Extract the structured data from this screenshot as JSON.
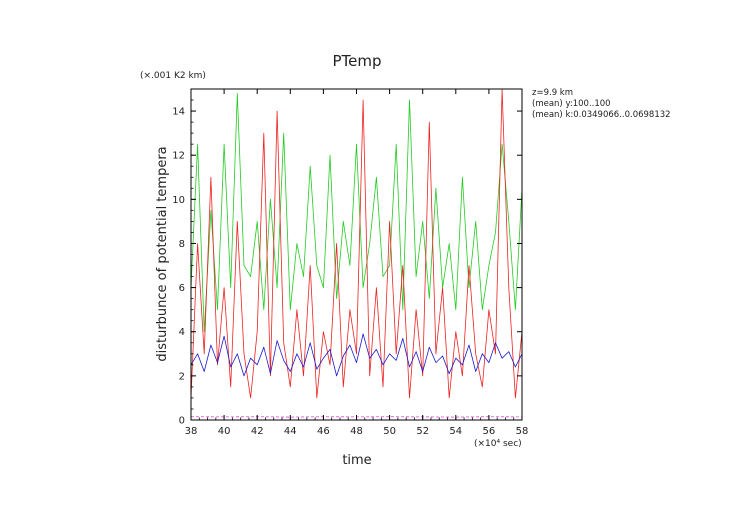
{
  "chart_data": {
    "type": "line",
    "title": "PTemp",
    "xlabel": "time",
    "ylabel": "disturbunce of potential tempera",
    "x_unit_label": "(×10⁴ sec)",
    "y_unit_label": "(×.001 K2 km)",
    "xlim": [
      38,
      58
    ],
    "ylim": [
      0,
      15
    ],
    "x_ticks": [
      38,
      40,
      42,
      44,
      46,
      48,
      50,
      52,
      54,
      56,
      58
    ],
    "y_ticks": [
      0,
      2,
      4,
      6,
      8,
      10,
      12,
      14
    ],
    "annotations": [
      "z=9.9 km",
      "(mean) y:100..100",
      "(mean) k:0.0349066..0.0698132"
    ],
    "grid": false,
    "series": [
      {
        "color": "#22cc22",
        "x": [
          38.0,
          38.4,
          38.8,
          39.2,
          39.6,
          40.0,
          40.4,
          40.8,
          41.2,
          41.6,
          42.0,
          42.4,
          42.8,
          43.2,
          43.6,
          44.0,
          44.4,
          44.8,
          45.2,
          45.6,
          46.0,
          46.4,
          46.8,
          47.2,
          47.6,
          48.0,
          48.4,
          48.8,
          49.2,
          49.6,
          50.0,
          50.4,
          50.8,
          51.2,
          51.6,
          52.0,
          52.4,
          52.8,
          53.2,
          53.6,
          54.0,
          54.4,
          54.8,
          55.2,
          55.6,
          56.0,
          56.4,
          56.8,
          57.2,
          57.6,
          58.0
        ],
        "y": [
          6.0,
          12.5,
          4.0,
          9.5,
          5.0,
          12.5,
          6.0,
          14.8,
          7.0,
          6.5,
          9.0,
          5.0,
          10.0,
          6.0,
          13.0,
          5.0,
          8.0,
          6.5,
          11.5,
          7.0,
          6.0,
          12.0,
          5.5,
          9.0,
          7.0,
          12.5,
          6.0,
          8.0,
          11.0,
          6.5,
          7.0,
          12.5,
          5.0,
          14.5,
          6.5,
          9.0,
          5.5,
          10.5,
          6.0,
          8.0,
          5.0,
          11.0,
          6.0,
          9.0,
          5.0,
          7.0,
          8.5,
          12.5,
          9.0,
          5.0,
          10.5
        ]
      },
      {
        "color": "#ee2222",
        "x": [
          38.0,
          38.4,
          38.8,
          39.2,
          39.6,
          40.0,
          40.4,
          40.8,
          41.2,
          41.6,
          42.0,
          42.4,
          42.8,
          43.2,
          43.6,
          44.0,
          44.4,
          44.8,
          45.2,
          45.6,
          46.0,
          46.4,
          46.8,
          47.2,
          47.6,
          48.0,
          48.4,
          48.8,
          49.2,
          49.6,
          50.0,
          50.4,
          50.8,
          51.2,
          51.6,
          52.0,
          52.4,
          52.8,
          53.2,
          53.6,
          54.0,
          54.4,
          54.8,
          55.2,
          55.6,
          56.0,
          56.4,
          56.8,
          57.2,
          57.6,
          58.0
        ],
        "y": [
          1.0,
          8.0,
          3.0,
          11.0,
          2.5,
          6.0,
          1.5,
          9.0,
          3.0,
          1.0,
          4.0,
          13.0,
          2.0,
          14.0,
          3.5,
          1.5,
          5.0,
          2.0,
          7.0,
          1.0,
          4.0,
          2.5,
          8.0,
          1.5,
          5.0,
          3.0,
          14.5,
          2.0,
          6.0,
          1.5,
          9.0,
          3.0,
          7.0,
          1.0,
          5.0,
          2.0,
          13.5,
          3.0,
          6.0,
          1.0,
          4.0,
          2.0,
          7.0,
          3.0,
          1.5,
          5.0,
          3.0,
          15.0,
          6.0,
          1.0,
          4.0
        ]
      },
      {
        "color": "#1c1ccc",
        "x": [
          38.0,
          38.4,
          38.8,
          39.2,
          39.6,
          40.0,
          40.4,
          40.8,
          41.2,
          41.6,
          42.0,
          42.4,
          42.8,
          43.2,
          43.6,
          44.0,
          44.4,
          44.8,
          45.2,
          45.6,
          46.0,
          46.4,
          46.8,
          47.2,
          47.6,
          48.0,
          48.4,
          48.8,
          49.2,
          49.6,
          50.0,
          50.4,
          50.8,
          51.2,
          51.6,
          52.0,
          52.4,
          52.8,
          53.2,
          53.6,
          54.0,
          54.4,
          54.8,
          55.2,
          55.6,
          56.0,
          56.4,
          56.8,
          57.2,
          57.6,
          58.0
        ],
        "y": [
          2.5,
          3.0,
          2.2,
          3.4,
          2.6,
          3.8,
          2.4,
          3.0,
          2.0,
          2.8,
          2.5,
          3.3,
          2.1,
          3.6,
          2.7,
          2.2,
          3.0,
          2.4,
          3.5,
          2.3,
          2.8,
          3.2,
          2.0,
          2.9,
          3.4,
          2.6,
          3.9,
          2.8,
          3.2,
          2.5,
          3.0,
          2.7,
          3.7,
          2.4,
          3.1,
          2.2,
          3.3,
          2.6,
          2.9,
          2.1,
          2.8,
          2.5,
          3.4,
          2.2,
          3.0,
          2.6,
          3.5,
          2.8,
          3.1,
          2.4,
          3.0
        ]
      },
      {
        "color": "#dd44dd",
        "style": "dashed",
        "x": [
          38.0,
          40.0,
          42.0,
          44.0,
          46.0,
          48.0,
          50.0,
          52.0,
          54.0,
          56.0,
          58.0
        ],
        "y": [
          0.15,
          0.14,
          0.15,
          0.13,
          0.15,
          0.14,
          0.15,
          0.14,
          0.13,
          0.15,
          0.14
        ]
      }
    ]
  }
}
